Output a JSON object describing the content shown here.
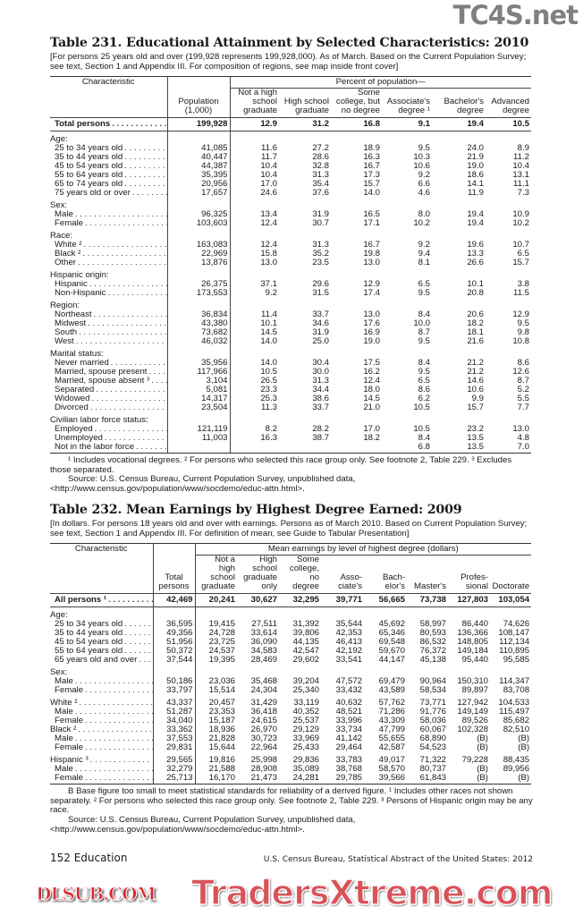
{
  "watermarks": {
    "top": "TC4S.net",
    "middle": "DLSUB.COM",
    "bottom": "TradersXtreme.com"
  },
  "t231": {
    "title": "Table 231. Educational Attainment by Selected Characteristics: 2010",
    "headnote": "[For persons 25 years old and over (199,928 represents 199,928,000). As of March. Based on the Current Population Survey; see text, Section 1 and Appendix III. For composition of regions, see map inside front cover]",
    "header": {
      "characteristic": "Characteristic",
      "population": "Population\n(1,000)",
      "group": "Percent of population—",
      "cols": [
        "Not a high\nschool\ngraduate",
        "High school\ngraduate",
        "Some\ncollege, but\nno degree",
        "Associate's\ndegree ¹",
        "Bachelor's\ndegree",
        "Advanced\ndegree"
      ]
    },
    "total": {
      "label": "Total persons",
      "values": [
        "199,928",
        "12.9",
        "31.2",
        "16.8",
        "9.1",
        "19.4",
        "10.5"
      ]
    },
    "groups": [
      {
        "label": "Age:",
        "rows": [
          {
            "label": "25 to 34 years old",
            "sub": true,
            "values": [
              "41,085",
              "11.6",
              "27.2",
              "18.9",
              "9.5",
              "24.0",
              "8.9"
            ]
          },
          {
            "label": "35 to 44 years old",
            "sub": true,
            "values": [
              "40,447",
              "11.7",
              "28.6",
              "16.3",
              "10.3",
              "21.9",
              "11.2"
            ]
          },
          {
            "label": "45 to 54 years old",
            "sub": true,
            "values": [
              "44,387",
              "10.4",
              "32.8",
              "16.7",
              "10.6",
              "19.0",
              "10.4"
            ]
          },
          {
            "label": "55 to 64 years old",
            "sub": true,
            "values": [
              "35,395",
              "10.4",
              "31.3",
              "17.3",
              "9.2",
              "18.6",
              "13.1"
            ]
          },
          {
            "label": "65 to 74 years old",
            "sub": true,
            "values": [
              "20,956",
              "17.0",
              "35.4",
              "15.7",
              "6.6",
              "14.1",
              "11.1"
            ]
          },
          {
            "label": "75 years old or over",
            "sub": true,
            "values": [
              "17,657",
              "24.6",
              "37.6",
              "14.0",
              "4.6",
              "11.9",
              "7.3"
            ]
          }
        ]
      },
      {
        "label": "Sex:",
        "rows": [
          {
            "label": "Male",
            "sub": true,
            "values": [
              "96,325",
              "13.4",
              "31.9",
              "16.5",
              "8.0",
              "19.4",
              "10.9"
            ]
          },
          {
            "label": "Female",
            "sub": true,
            "values": [
              "103,603",
              "12.4",
              "30.7",
              "17.1",
              "10.2",
              "19.4",
              "10.2"
            ]
          }
        ]
      },
      {
        "label": "Race:",
        "rows": [
          {
            "label": "White ²",
            "sub": true,
            "values": [
              "163,083",
              "12.4",
              "31.3",
              "16.7",
              "9.2",
              "19.6",
              "10.7"
            ]
          },
          {
            "label": "Black ²",
            "sub": true,
            "values": [
              "22,969",
              "15.8",
              "35.2",
              "19.8",
              "9.4",
              "13.3",
              "6.5"
            ]
          },
          {
            "label": "Other",
            "sub": true,
            "values": [
              "13,876",
              "13.0",
              "23.5",
              "13.0",
              "8.1",
              "26.6",
              "15.7"
            ]
          }
        ]
      },
      {
        "label": "Hispanic origin:",
        "rows": [
          {
            "label": "Hispanic",
            "sub": true,
            "values": [
              "26,375",
              "37.1",
              "29.6",
              "12.9",
              "6.5",
              "10.1",
              "3.8"
            ]
          },
          {
            "label": "Non-Hispanic",
            "sub": true,
            "values": [
              "173,553",
              "9.2",
              "31.5",
              "17.4",
              "9.5",
              "20.8",
              "11.5"
            ]
          }
        ]
      },
      {
        "label": "Region:",
        "rows": [
          {
            "label": "Northeast",
            "sub": true,
            "values": [
              "36,834",
              "11.4",
              "33.7",
              "13.0",
              "8.4",
              "20.6",
              "12.9"
            ]
          },
          {
            "label": "Midwest",
            "sub": true,
            "values": [
              "43,380",
              "10.1",
              "34.6",
              "17.6",
              "10.0",
              "18.2",
              "9.5"
            ]
          },
          {
            "label": "South",
            "sub": true,
            "values": [
              "73,682",
              "14.5",
              "31.9",
              "16.9",
              "8.7",
              "18.1",
              "9.8"
            ]
          },
          {
            "label": "West",
            "sub": true,
            "values": [
              "46,032",
              "14.0",
              "25.0",
              "19.0",
              "9.5",
              "21.6",
              "10.8"
            ]
          }
        ]
      },
      {
        "label": "Marital status:",
        "rows": [
          {
            "label": "Never married",
            "sub": true,
            "values": [
              "35,956",
              "14.0",
              "30.4",
              "17.5",
              "8.4",
              "21.2",
              "8.6"
            ]
          },
          {
            "label": "Married, spouse present",
            "sub": true,
            "values": [
              "117,966",
              "10.5",
              "30.0",
              "16.2",
              "9.5",
              "21.2",
              "12.6"
            ]
          },
          {
            "label": "Married, spouse absent ³",
            "sub": true,
            "values": [
              "3,104",
              "26.5",
              "31.3",
              "12.4",
              "6.5",
              "14.6",
              "8.7"
            ]
          },
          {
            "label": "Separated",
            "sub": true,
            "values": [
              "5,081",
              "23.3",
              "34.4",
              "18.0",
              "8.6",
              "10.6",
              "5.2"
            ]
          },
          {
            "label": "Widowed",
            "sub": true,
            "values": [
              "14,317",
              "25.3",
              "38.6",
              "14.5",
              "6.2",
              "9.9",
              "5.5"
            ]
          },
          {
            "label": "Divorced",
            "sub": true,
            "values": [
              "23,504",
              "11.3",
              "33.7",
              "21.0",
              "10.5",
              "15.7",
              "7.7"
            ]
          }
        ]
      },
      {
        "label": "Civilian labor force status:",
        "rows": [
          {
            "label": "Employed",
            "sub": true,
            "values": [
              "121,119",
              "8.2",
              "28.2",
              "17.0",
              "10.5",
              "23.2",
              "13.0"
            ]
          },
          {
            "label": "Unemployed",
            "sub": true,
            "values": [
              "11,003",
              "16.3",
              "38.7",
              "18.2",
              "8.4",
              "13.5",
              "4.8"
            ]
          },
          {
            "label": "Not in the labor force",
            "sub": true,
            "values": [
              "",
              "",
              "",
              "",
              "6.8",
              "13.5",
              "7.0"
            ]
          }
        ]
      }
    ],
    "footnotes": "¹ Includes vocational degrees. ² For persons who selected this race group only. See footnote 2, Table 229. ³ Excludes those separated.",
    "source": "Source: U.S. Census Bureau, Current Population Survey, unpublished data, <http://www.census.gov/population/www/socdemo/educ-attn.html>."
  },
  "t232": {
    "title": "Table 232. Mean Earnings by Highest Degree Earned: 2009",
    "headnote": "[In dollars. For persons 18 years old and over with earnings. Persons as of March 2010. Based on Current Population Survey; see text, Section 1 and  Appendix III. For definition of mean, see Guide to Tabular Presentation]",
    "header": {
      "characteristic": "Characteristic",
      "total": "Total\npersons",
      "group": "Mean earnings by level of highest degree (dollars)",
      "cols": [
        "Not a\nhigh\nschool\ngraduate",
        "High\nschool\ngraduate\nonly",
        "Some\ncollege,\nno\ndegree",
        "Asso-\nciate's",
        "Bach-\nelor's",
        "Master's",
        "Profes-\nsional",
        "Doctorate"
      ]
    },
    "total": {
      "label": "All persons ¹",
      "values": [
        "42,469",
        "20,241",
        "30,627",
        "32,295",
        "39,771",
        "56,665",
        "73,738",
        "127,803",
        "103,054"
      ]
    },
    "groups": [
      {
        "label": "Age:",
        "rows": [
          {
            "label": "25 to 34 years old",
            "sub": true,
            "values": [
              "36,595",
              "19,415",
              "27,511",
              "31,392",
              "35,544",
              "45,692",
              "58,997",
              "86,440",
              "74,626"
            ]
          },
          {
            "label": "35 to 44 years old",
            "sub": true,
            "values": [
              "49,356",
              "24,728",
              "33,614",
              "39,806",
              "42,353",
              "65,346",
              "80,593",
              "136,366",
              "108,147"
            ]
          },
          {
            "label": "45 to 54 years old",
            "sub": true,
            "values": [
              "51,956",
              "23,725",
              "36,090",
              "44,135",
              "46,413",
              "69,548",
              "86,532",
              "148,805",
              "112,134"
            ]
          },
          {
            "label": "55 to 64 years old",
            "sub": true,
            "values": [
              "50,372",
              "24,537",
              "34,583",
              "42,547",
              "42,192",
              "59,670",
              "76,372",
              "149,184",
              "110,895"
            ]
          },
          {
            "label": "65 years old and over",
            "sub": true,
            "values": [
              "37,544",
              "19,395",
              "28,469",
              "29,602",
              "33,541",
              "44,147",
              "45,138",
              "95,440",
              "95,585"
            ]
          }
        ]
      },
      {
        "label": "Sex:",
        "rows": [
          {
            "label": "Male",
            "sub": true,
            "values": [
              "50,186",
              "23,036",
              "35,468",
              "39,204",
              "47,572",
              "69,479",
              "90,964",
              "150,310",
              "114,347"
            ]
          },
          {
            "label": "Female",
            "sub": true,
            "values": [
              "33,797",
              "15,514",
              "24,304",
              "25,340",
              "33,432",
              "43,589",
              "58,534",
              "89,897",
              "83,708"
            ]
          }
        ]
      },
      {
        "label": "",
        "rows": [
          {
            "label": "White ²",
            "sub": false,
            "values": [
              "43,337",
              "20,457",
              "31,429",
              "33,119",
              "40,632",
              "57,762",
              "73,771",
              "127,942",
              "104,533"
            ]
          },
          {
            "label": "Male",
            "sub": true,
            "values": [
              "51,287",
              "23,353",
              "36,418",
              "40,352",
              "48,521",
              "71,286",
              "91,776",
              "149,149",
              "115,497"
            ]
          },
          {
            "label": "Female",
            "sub": true,
            "values": [
              "34,040",
              "15,187",
              "24,615",
              "25,537",
              "33,996",
              "43,309",
              "58,036",
              "89,526",
              "85,682"
            ]
          },
          {
            "label": "Black ²",
            "sub": false,
            "values": [
              "33,362",
              "18,936",
              "26,970",
              "29,129",
              "33,734",
              "47,799",
              "60,067",
              "102,328",
              "82,510"
            ]
          },
          {
            "label": "Male",
            "sub": true,
            "values": [
              "37,553",
              "21,828",
              "30,723",
              "33,969",
              "41,142",
              "55,655",
              "68,890",
              "(B)",
              "(B)"
            ]
          },
          {
            "label": "Female",
            "sub": true,
            "values": [
              "29,831",
              "15,644",
              "22,964",
              "25,433",
              "29,464",
              "42,587",
              "54,523",
              "(B)",
              "(B)"
            ]
          }
        ]
      },
      {
        "label": "",
        "rows": [
          {
            "label": "Hispanic ³",
            "sub": false,
            "values": [
              "29,565",
              "19,816",
              "25,998",
              "29,836",
              "33,783",
              "49,017",
              "71,322",
              "79,228",
              "88,435"
            ]
          },
          {
            "label": "Male",
            "sub": true,
            "values": [
              "32,279",
              "21,588",
              "28,908",
              "35,089",
              "38,768",
              "58,570",
              "80,737",
              "(B)",
              "89,956"
            ]
          },
          {
            "label": "Female",
            "sub": true,
            "values": [
              "25,713",
              "16,170",
              "21,473",
              "24,281",
              "29,785",
              "39,566",
              "61,843",
              "(B)",
              "(B)"
            ]
          }
        ]
      }
    ],
    "footnotes": "B Base figure too small to meet statistical standards for reliability of a derived figure. ¹ Includes other races not shown separately. ² For persons who selected this race group only. See footnote 2, Table 229. ³ Persons of Hispanic origin may be any race.",
    "source": "Source: U.S. Census Bureau, Current Population Survey, unpublished data, <http://www.census.gov/population/www/socdemo/educ-attn.html>."
  },
  "footer": {
    "page": "152  Education",
    "credit": "U.S. Census Bureau, Statistical Abstract of the United States: 2012"
  }
}
